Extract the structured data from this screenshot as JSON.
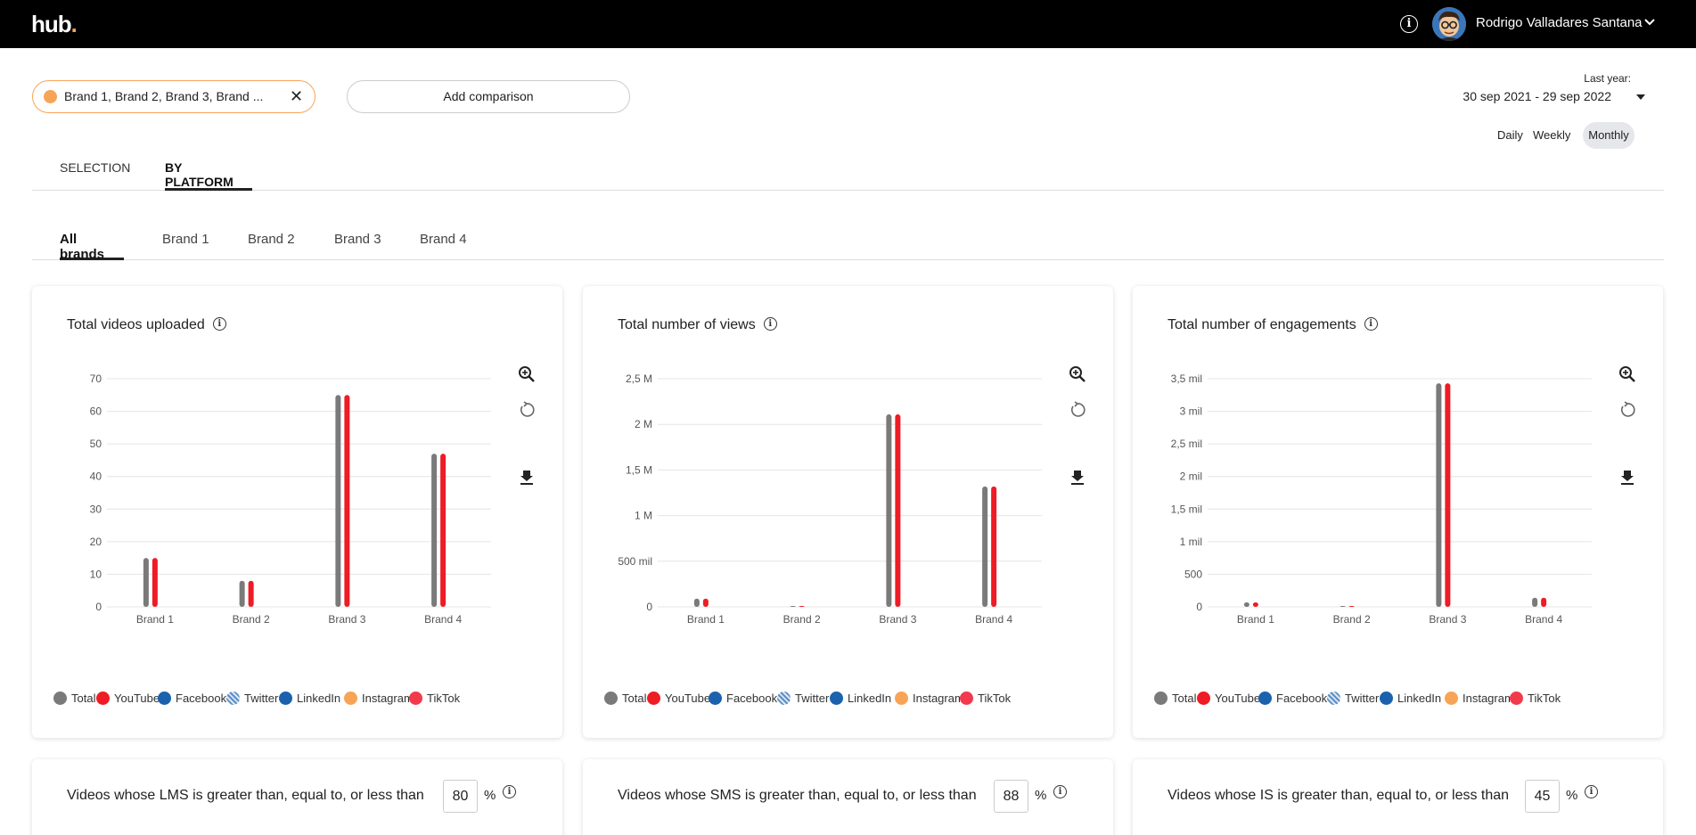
{
  "header": {
    "logo": "hub",
    "logo_dot": ".",
    "user_name": "Rodrigo Valladares Santana",
    "info_icon": "info-icon"
  },
  "filters": {
    "brand_chip": "Brand 1, Brand 2, Brand 3, Brand ...",
    "add_comparison": "Add comparison",
    "period_label": "Last year:",
    "period_range": "30 sep 2021 - 29 sep 2022",
    "granularity": [
      "Daily",
      "Weekly",
      "Monthly"
    ],
    "granularity_selected": "Monthly"
  },
  "tabs": {
    "main": [
      "SELECTION",
      "BY PLATFORM"
    ],
    "main_active": "BY PLATFORM",
    "brands": [
      "All brands",
      "Brand 1",
      "Brand 2",
      "Brand 3",
      "Brand 4"
    ],
    "brands_active": "All brands"
  },
  "legend": [
    {
      "label": "Total",
      "color": "#7a7a7a"
    },
    {
      "label": "YouTube",
      "color": "#ee1c25"
    },
    {
      "label": "Facebook",
      "color": "#1a62ad"
    },
    {
      "label": "Twitter",
      "color": "#8fb4d9"
    },
    {
      "label": "LinkedIn",
      "color": "#1a62ad"
    },
    {
      "label": "Instagram",
      "color": "#f7a457"
    },
    {
      "label": "TikTok",
      "color": "#f33a4d"
    }
  ],
  "chart_data": [
    {
      "type": "bar",
      "title": "Total videos uploaded",
      "categories": [
        "Brand 1",
        "Brand 2",
        "Brand 3",
        "Brand 4"
      ],
      "yticks": [
        "0",
        "10",
        "20",
        "30",
        "40",
        "50",
        "60",
        "70"
      ],
      "ylim": [
        0,
        70
      ],
      "series": [
        {
          "name": "Total",
          "color": "#7a7a7a",
          "values": [
            15,
            8,
            65,
            47
          ]
        },
        {
          "name": "YouTube",
          "color": "#ee1c25",
          "values": [
            15,
            8,
            65,
            47
          ]
        }
      ]
    },
    {
      "type": "bar",
      "title": "Total number of views",
      "categories": [
        "Brand 1",
        "Brand 2",
        "Brand 3",
        "Brand 4"
      ],
      "yticks": [
        "0",
        "500 mil",
        "1 M",
        "1,5 M",
        "2 M",
        "2,5 M"
      ],
      "ylim": [
        0,
        2500000
      ],
      "series": [
        {
          "name": "Total",
          "color": "#7a7a7a",
          "values": [
            90000,
            8000,
            2110000,
            1320000
          ]
        },
        {
          "name": "YouTube",
          "color": "#ee1c25",
          "values": [
            90000,
            8000,
            2110000,
            1320000
          ]
        }
      ]
    },
    {
      "type": "bar",
      "title": "Total number of engagements",
      "categories": [
        "Brand 1",
        "Brand 2",
        "Brand 3",
        "Brand 4"
      ],
      "yticks": [
        "0",
        "500",
        "1 mil",
        "1,5 mil",
        "2 mil",
        "2,5 mil",
        "3 mil",
        "3,5 mil"
      ],
      "ylim": [
        0,
        3500
      ],
      "series": [
        {
          "name": "Total",
          "color": "#7a7a7a",
          "values": [
            70,
            3,
            3430,
            140
          ]
        },
        {
          "name": "YouTube",
          "color": "#ee1c25",
          "values": [
            70,
            3,
            3430,
            140
          ]
        }
      ]
    }
  ],
  "thresholds": [
    {
      "text": "Videos whose LMS is greater than, equal to, or less than",
      "value": "80",
      "unit": "%"
    },
    {
      "text": "Videos whose SMS is greater than, equal to, or less than",
      "value": "88",
      "unit": "%"
    },
    {
      "text": "Videos whose IS is greater than, equal to, or less than",
      "value": "45",
      "unit": "%"
    }
  ]
}
